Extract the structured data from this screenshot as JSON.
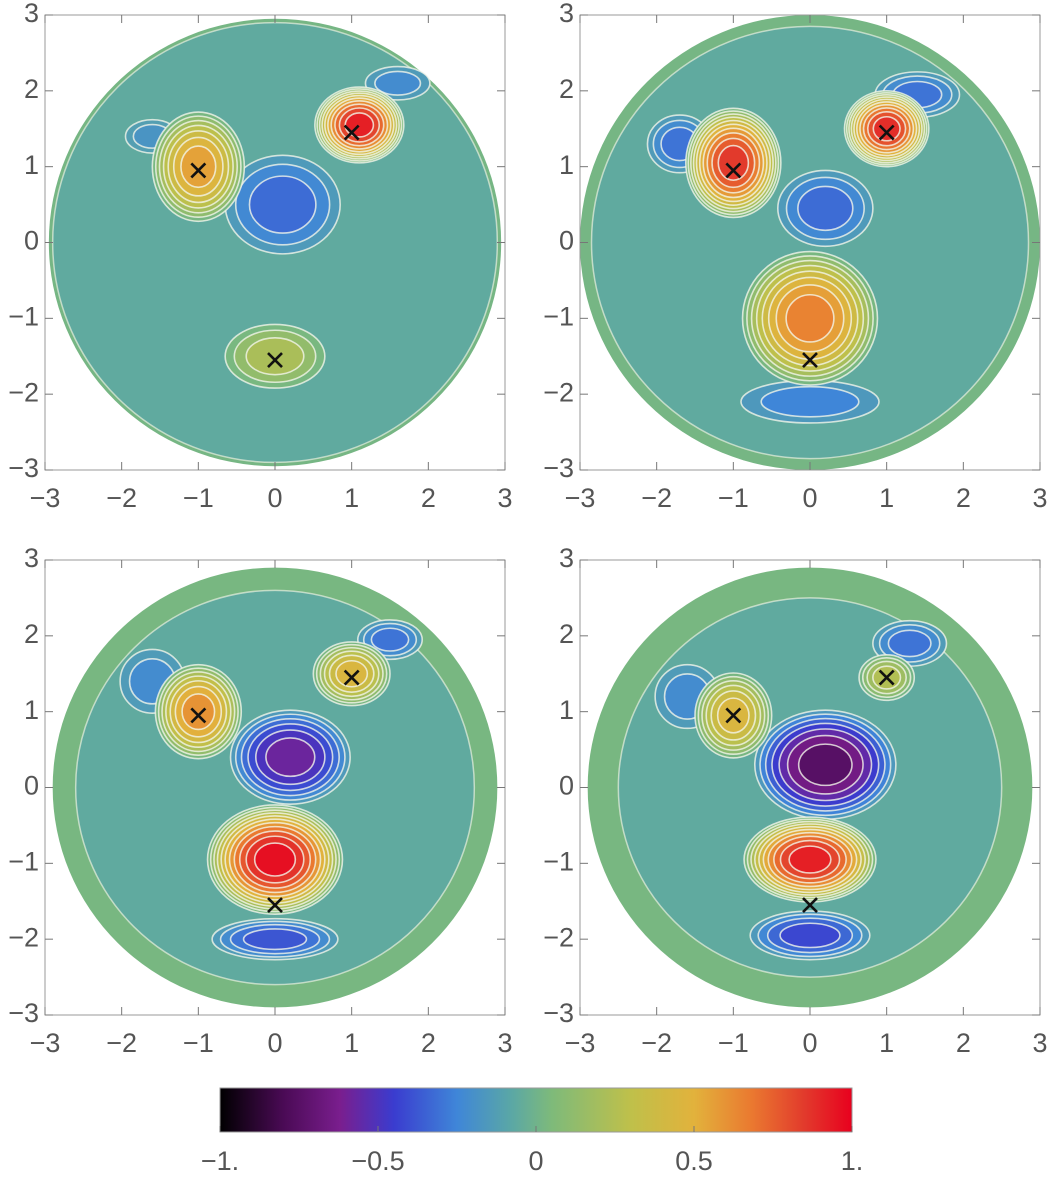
{
  "chart_data": [
    {
      "type": "contour",
      "xlim": [
        -3,
        3
      ],
      "ylim": [
        -3,
        3
      ],
      "xticks": [
        {
          "value": -3,
          "label": "−3"
        },
        {
          "value": -2,
          "label": "−2"
        },
        {
          "value": -1,
          "label": "−1"
        },
        0,
        1,
        2,
        3
      ],
      "yticks": [
        {
          "value": -3,
          "label": "−3"
        },
        {
          "value": -2,
          "label": "−2"
        },
        {
          "value": -1,
          "label": "−1"
        },
        0,
        1,
        2,
        3
      ],
      "disk": {
        "radius": 2.95,
        "edge_value": 0.02,
        "inner_radius": 2.9,
        "value": -0.06
      },
      "blobs": [
        {
          "x": -1.6,
          "y": 1.4,
          "rx": 0.35,
          "ry": 0.22,
          "value": -0.18
        },
        {
          "x": 1.6,
          "y": 2.1,
          "rx": 0.42,
          "ry": 0.22,
          "value": -0.22
        },
        {
          "x": 0.1,
          "y": 0.5,
          "rx": 0.75,
          "ry": 0.65,
          "value": -0.32
        },
        {
          "x": 0,
          "y": -1.5,
          "rx": 0.65,
          "ry": 0.42,
          "value": 0.22
        },
        {
          "x": -1,
          "y": 1.0,
          "rx": 0.6,
          "ry": 0.72,
          "value": 0.55
        },
        {
          "x": 1.1,
          "y": 1.55,
          "rx": 0.58,
          "ry": 0.5,
          "value": 0.92
        }
      ],
      "markers": {
        "x": [
          -1,
          1,
          0
        ],
        "y": [
          0.95,
          1.45,
          -1.55
        ]
      }
    },
    {
      "type": "contour",
      "xlim": [
        -3,
        3
      ],
      "ylim": [
        -3,
        3
      ],
      "xticks": [
        {
          "value": -3,
          "label": "−3"
        },
        {
          "value": -2,
          "label": "−2"
        },
        {
          "value": -1,
          "label": "−1"
        },
        0,
        1,
        2,
        3
      ],
      "yticks": [
        {
          "value": -3,
          "label": "−3"
        },
        {
          "value": -2,
          "label": "−2"
        },
        {
          "value": -1,
          "label": "−1"
        },
        0,
        1,
        2,
        3
      ],
      "disk": {
        "radius": 3.0,
        "edge_value": 0.02,
        "inner_radius": 2.85,
        "value": -0.06
      },
      "blobs": [
        {
          "x": -1.7,
          "y": 1.3,
          "rx": 0.42,
          "ry": 0.38,
          "value": -0.3
        },
        {
          "x": 1.4,
          "y": 1.95,
          "rx": 0.55,
          "ry": 0.3,
          "value": -0.3
        },
        {
          "x": 0,
          "y": -2.1,
          "rx": 0.9,
          "ry": 0.28,
          "value": -0.25
        },
        {
          "x": 0.2,
          "y": 0.45,
          "rx": 0.62,
          "ry": 0.5,
          "value": -0.32
        },
        {
          "x": 0,
          "y": -1.0,
          "rx": 0.88,
          "ry": 0.88,
          "value": 0.65
        },
        {
          "x": -1,
          "y": 1.05,
          "rx": 0.62,
          "ry": 0.72,
          "value": 0.85
        },
        {
          "x": 1,
          "y": 1.5,
          "rx": 0.55,
          "ry": 0.5,
          "value": 0.88
        }
      ],
      "markers": {
        "x": [
          -1,
          1,
          0
        ],
        "y": [
          0.95,
          1.45,
          -1.55
        ]
      }
    },
    {
      "type": "contour",
      "xlim": [
        -3,
        3
      ],
      "ylim": [
        -3,
        3
      ],
      "xticks": [
        {
          "value": -3,
          "label": "−3"
        },
        {
          "value": -2,
          "label": "−2"
        },
        {
          "value": -1,
          "label": "−1"
        },
        0,
        1,
        2,
        3
      ],
      "yticks": [
        {
          "value": -3,
          "label": "−3"
        },
        {
          "value": -2,
          "label": "−2"
        },
        {
          "value": -1,
          "label": "−1"
        },
        0,
        1,
        2,
        3
      ],
      "disk": {
        "radius": 2.9,
        "edge_value": 0.03,
        "inner_radius": 2.6,
        "value": -0.06
      },
      "blobs": [
        {
          "x": -1.6,
          "y": 1.4,
          "rx": 0.42,
          "ry": 0.42,
          "value": -0.22
        },
        {
          "x": 1.5,
          "y": 1.95,
          "rx": 0.42,
          "ry": 0.26,
          "value": -0.3
        },
        {
          "x": 0,
          "y": -2.0,
          "rx": 0.82,
          "ry": 0.27,
          "value": -0.38
        },
        {
          "x": 0.2,
          "y": 0.4,
          "rx": 0.78,
          "ry": 0.62,
          "value": -0.58
        },
        {
          "x": 1,
          "y": 1.5,
          "rx": 0.5,
          "ry": 0.42,
          "value": 0.45
        },
        {
          "x": -1,
          "y": 1.0,
          "rx": 0.56,
          "ry": 0.62,
          "value": 0.6
        },
        {
          "x": 0,
          "y": -0.95,
          "rx": 0.88,
          "ry": 0.72,
          "value": 0.96
        }
      ],
      "markers": {
        "x": [
          -1,
          1,
          0
        ],
        "y": [
          0.95,
          1.45,
          -1.55
        ]
      }
    },
    {
      "type": "contour",
      "xlim": [
        -3,
        3
      ],
      "ylim": [
        -3,
        3
      ],
      "xticks": [
        {
          "value": -3,
          "label": "−3"
        },
        {
          "value": -2,
          "label": "−2"
        },
        {
          "value": -1,
          "label": "−1"
        },
        0,
        1,
        2,
        3
      ],
      "yticks": [
        {
          "value": -3,
          "label": "−3"
        },
        {
          "value": -2,
          "label": "−2"
        },
        {
          "value": -1,
          "label": "−1"
        },
        0,
        1,
        2,
        3
      ],
      "disk": {
        "radius": 2.9,
        "edge_value": 0.03,
        "inner_radius": 2.5,
        "value": -0.06
      },
      "blobs": [
        {
          "x": -1.6,
          "y": 1.2,
          "rx": 0.42,
          "ry": 0.42,
          "value": -0.22
        },
        {
          "x": 1.3,
          "y": 1.9,
          "rx": 0.48,
          "ry": 0.3,
          "value": -0.3
        },
        {
          "x": 0,
          "y": -1.95,
          "rx": 0.78,
          "ry": 0.32,
          "value": -0.42
        },
        {
          "x": 0.2,
          "y": 0.3,
          "rx": 0.92,
          "ry": 0.72,
          "value": -0.75
        },
        {
          "x": 1,
          "y": 1.45,
          "rx": 0.36,
          "ry": 0.3,
          "value": 0.25
        },
        {
          "x": -1,
          "y": 0.95,
          "rx": 0.5,
          "ry": 0.56,
          "value": 0.45
        },
        {
          "x": 0,
          "y": -0.95,
          "rx": 0.86,
          "ry": 0.56,
          "value": 0.92
        }
      ],
      "markers": {
        "x": [
          -1,
          1,
          0
        ],
        "y": [
          0.95,
          1.45,
          -1.55
        ]
      }
    },
    {
      "type": "colorbar",
      "xlim": [
        -1,
        1
      ],
      "xticks": [
        {
          "value": -1,
          "label": "−1."
        },
        {
          "value": -0.5,
          "label": "−0.5"
        },
        0,
        0.5,
        {
          "value": 1,
          "label": "1."
        }
      ],
      "colormap": [
        {
          "value": -1,
          "color": "#000000"
        },
        {
          "value": -0.8,
          "color": "#4a0a55"
        },
        {
          "value": -0.62,
          "color": "#7a1e8e"
        },
        {
          "value": -0.45,
          "color": "#3a3ccf"
        },
        {
          "value": -0.25,
          "color": "#3f86d8"
        },
        {
          "value": -0.08,
          "color": "#5aa7a6"
        },
        {
          "value": 0.05,
          "color": "#7eba7a"
        },
        {
          "value": 0.3,
          "color": "#bfc04a"
        },
        {
          "value": 0.5,
          "color": "#e2b23c"
        },
        {
          "value": 0.68,
          "color": "#ea7a30"
        },
        {
          "value": 0.85,
          "color": "#e23a2c"
        },
        {
          "value": 1,
          "color": "#e8001e"
        }
      ]
    }
  ]
}
